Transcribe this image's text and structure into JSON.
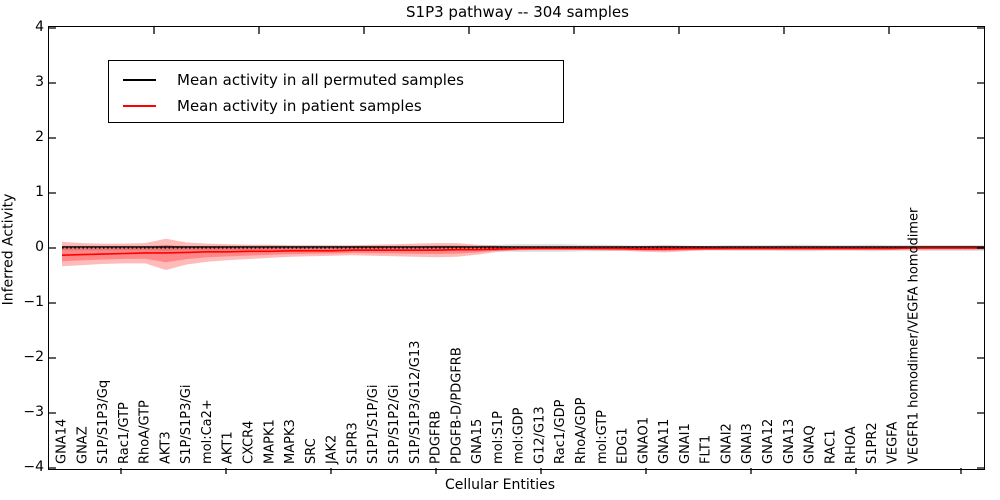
{
  "chart_data": {
    "type": "line",
    "title": "S1P3 pathway -- 304 samples",
    "xlabel": "Cellular Entities",
    "ylabel": "Inferred Activity",
    "ylim": [
      -4,
      4
    ],
    "ytick_values": [
      4,
      3,
      2,
      1,
      0,
      -1,
      -2,
      -3,
      -4
    ],
    "ytick_labels": [
      "4",
      "3",
      "2",
      "1",
      "0",
      "−1",
      "−2",
      "−3",
      "−4"
    ],
    "grid": false,
    "zero_line": true,
    "legend": {
      "position": "upper left",
      "entries": [
        {
          "label": "Mean activity in all permuted samples",
          "color": "#000000"
        },
        {
          "label": "Mean activity in patient samples",
          "color": "#ff0000"
        }
      ]
    },
    "categories": [
      "GNA14",
      "GNAZ",
      "S1P/S1P3/Gq",
      "Rac1/GTP",
      "RhoA/GTP",
      "AKT3",
      "S1P/S1P3/Gi",
      "mol:Ca2+",
      "AKT1",
      "CXCR4",
      "MAPK1",
      "MAPK3",
      "SRC",
      "JAK2",
      "S1PR3",
      "S1P1/S1P/Gi",
      "S1P/S1P2/Gi",
      "S1P/S1P3/G12/G13",
      "PDGFRB",
      "PDGFB-D/PDGFRB",
      "GNA15",
      "mol:S1P",
      "mol:GDP",
      "G12/G13",
      "Rac1/GDP",
      "RhoA/GDP",
      "mol:GTP",
      "EDG1",
      "GNAO1",
      "GNA11",
      "GNAI1",
      "FLT1",
      "GNAI2",
      "GNAI3",
      "GNA12",
      "GNA13",
      "GNAQ",
      "RAC1",
      "RHOA",
      "S1PR2",
      "VEGFA",
      "VEGFR1 homodimer/VEGFA homodimer"
    ],
    "series": [
      {
        "name": "Mean activity in all permuted samples",
        "color": "#000000",
        "values": [
          0.02,
          0.02,
          0.02,
          0.02,
          0.02,
          0.02,
          0.02,
          0.02,
          0.02,
          0.02,
          0.02,
          0.02,
          0.02,
          0.02,
          0.02,
          0.02,
          0.02,
          0.02,
          0.02,
          0.02,
          0.02,
          0.02,
          0.02,
          0.02,
          0.02,
          0.02,
          0.02,
          0.02,
          0.02,
          0.02,
          0.02,
          0.02,
          0.02,
          0.02,
          0.02,
          0.02,
          0.02,
          0.02,
          0.02,
          0.02,
          0.02,
          0.02
        ]
      },
      {
        "name": "Mean activity in patient samples",
        "color": "#ff0000",
        "values": [
          -0.13,
          -0.12,
          -0.11,
          -0.1,
          -0.09,
          -0.09,
          -0.08,
          -0.07,
          -0.07,
          -0.06,
          -0.06,
          -0.05,
          -0.05,
          -0.05,
          -0.04,
          -0.04,
          -0.04,
          -0.04,
          -0.04,
          -0.03,
          -0.03,
          -0.02,
          -0.01,
          -0.01,
          -0.01,
          -0.01,
          -0.01,
          -0.01,
          -0.02,
          -0.02,
          -0.01,
          -0.01,
          -0.01,
          -0.01,
          -0.01,
          -0.01,
          -0.01,
          -0.01,
          -0.01,
          -0.01,
          -0.01,
          0.0
        ]
      }
    ],
    "bands": [
      {
        "name": "permuted-samples-spread",
        "color": "#000000",
        "opacity": 0.15,
        "upper": [
          0.04,
          0.04,
          0.04,
          0.04,
          0.04,
          0.05,
          0.04,
          0.04,
          0.04,
          0.04,
          0.04,
          0.04,
          0.04,
          0.04,
          0.04,
          0.04,
          0.04,
          0.04,
          0.05,
          0.05,
          0.04,
          0.06,
          0.07,
          0.07,
          0.07,
          0.06,
          0.06,
          0.05,
          0.04,
          0.04,
          0.04,
          0.04,
          0.05,
          0.05,
          0.05,
          0.06,
          0.06,
          0.05,
          0.05,
          0.06,
          0.05,
          0.05
        ],
        "lower": [
          -0.04,
          -0.04,
          -0.04,
          -0.04,
          -0.04,
          -0.05,
          -0.04,
          -0.04,
          -0.04,
          -0.04,
          -0.04,
          -0.04,
          -0.04,
          -0.04,
          -0.04,
          -0.04,
          -0.04,
          -0.04,
          -0.05,
          -0.05,
          -0.04,
          -0.06,
          -0.07,
          -0.07,
          -0.07,
          -0.06,
          -0.06,
          -0.05,
          -0.04,
          -0.04,
          -0.04,
          -0.04,
          -0.05,
          -0.05,
          -0.05,
          -0.06,
          -0.06,
          -0.05,
          -0.05,
          -0.06,
          -0.05,
          -0.05
        ]
      },
      {
        "name": "patient-samples-spread",
        "color": "#ff0000",
        "opacity": 0.27,
        "upper": [
          0.11,
          0.09,
          0.08,
          0.08,
          0.09,
          0.17,
          0.1,
          0.08,
          0.07,
          0.06,
          0.06,
          0.05,
          0.05,
          0.05,
          0.05,
          0.06,
          0.07,
          0.08,
          0.09,
          0.09,
          0.06,
          0.04,
          0.02,
          0.02,
          0.02,
          0.02,
          0.02,
          0.03,
          0.04,
          0.05,
          0.04,
          0.03,
          0.02,
          0.02,
          0.02,
          0.02,
          0.02,
          0.02,
          0.02,
          0.02,
          0.02,
          0.03
        ],
        "lower": [
          -0.33,
          -0.31,
          -0.29,
          -0.28,
          -0.28,
          -0.4,
          -0.3,
          -0.25,
          -0.22,
          -0.2,
          -0.18,
          -0.16,
          -0.15,
          -0.14,
          -0.13,
          -0.14,
          -0.15,
          -0.16,
          -0.17,
          -0.16,
          -0.12,
          -0.07,
          -0.04,
          -0.03,
          -0.03,
          -0.03,
          -0.04,
          -0.05,
          -0.07,
          -0.08,
          -0.06,
          -0.04,
          -0.03,
          -0.03,
          -0.03,
          -0.03,
          -0.03,
          -0.03,
          -0.03,
          -0.03,
          -0.03,
          -0.03
        ]
      }
    ]
  }
}
